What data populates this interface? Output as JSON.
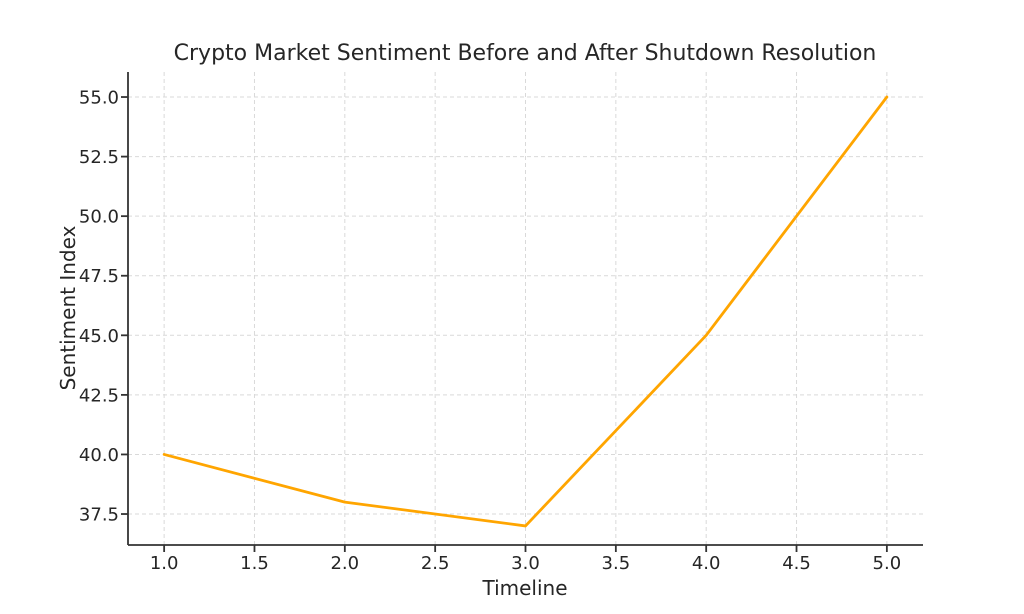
{
  "chart_data": {
    "type": "line",
    "title": "Crypto Market Sentiment Before and After Shutdown Resolution",
    "xlabel": "Timeline",
    "ylabel": "Sentiment Index",
    "x": [
      1,
      2,
      3,
      4,
      5
    ],
    "series": [
      {
        "name": "Sentiment Index",
        "values": [
          40,
          38,
          37,
          45,
          55
        ]
      }
    ],
    "xlim": [
      0.8,
      5.2
    ],
    "ylim": [
      36.2,
      56.05
    ],
    "xticks": [
      1.0,
      1.5,
      2.0,
      2.5,
      3.0,
      3.5,
      4.0,
      4.5,
      5.0
    ],
    "xtick_labels": [
      "1.0",
      "1.5",
      "2.0",
      "2.5",
      "3.0",
      "3.5",
      "4.0",
      "4.5",
      "5.0"
    ],
    "yticks": [
      37.5,
      40.0,
      42.5,
      45.0,
      47.5,
      50.0,
      52.5,
      55.0
    ],
    "ytick_labels": [
      "37.5",
      "40.0",
      "42.5",
      "45.0",
      "47.5",
      "50.0",
      "52.5",
      "55.0"
    ],
    "grid": true,
    "grid_style": "dashed",
    "legend": "none",
    "colors": {
      "line": "#FFA500",
      "grid": "#d9d9d9",
      "spine": "#333333",
      "text": "#262626",
      "background": "#ffffff"
    }
  }
}
